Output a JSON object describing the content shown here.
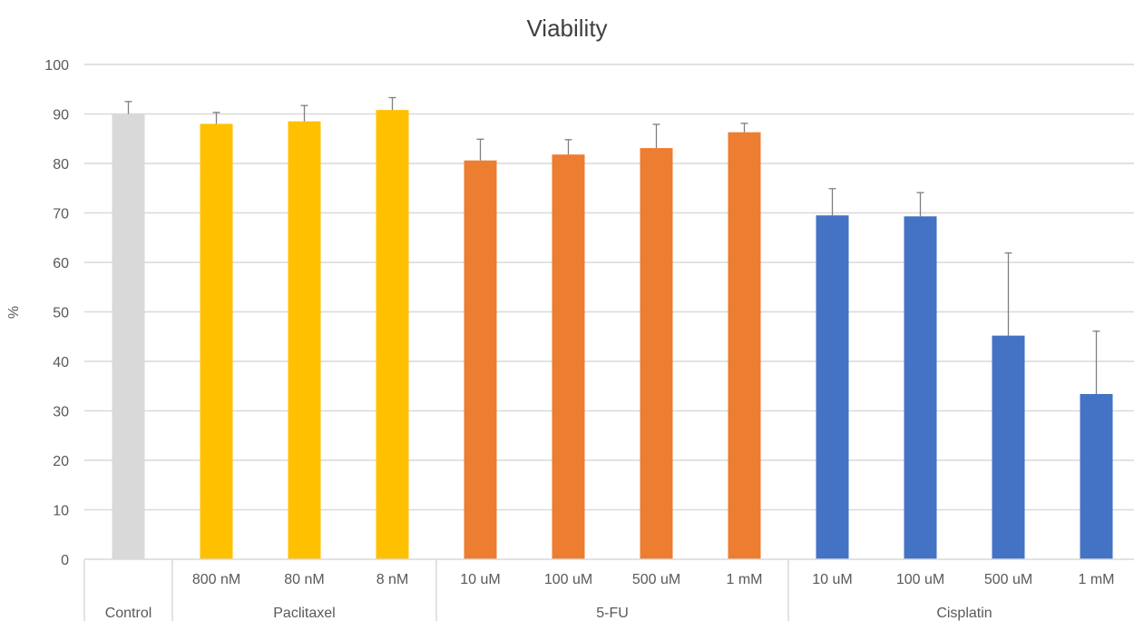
{
  "chart_data": {
    "type": "bar",
    "title": "Viability",
    "ylabel": "%",
    "xlabel": "",
    "ylim": [
      0,
      100
    ],
    "yticks": [
      0,
      10,
      20,
      30,
      40,
      50,
      60,
      70,
      80,
      90,
      100
    ],
    "grid": true,
    "groups": [
      {
        "label": "",
        "bars": [
          {
            "label": "Control",
            "value": 90,
            "error": 2.5,
            "color": "#d9d9d9"
          }
        ]
      },
      {
        "label": "Paclitaxel",
        "bars": [
          {
            "label": "800 nM",
            "value": 88,
            "error": 2.3,
            "color": "#ffc000"
          },
          {
            "label": "80 nM",
            "value": 88.5,
            "error": 3.2,
            "color": "#ffc000"
          },
          {
            "label": "8 nM",
            "value": 90.8,
            "error": 2.5,
            "color": "#ffc000"
          }
        ]
      },
      {
        "label": "5-FU",
        "bars": [
          {
            "label": "10 uM",
            "value": 80.6,
            "error": 4.3,
            "color": "#ed7d31"
          },
          {
            "label": "100 uM",
            "value": 81.8,
            "error": 3.0,
            "color": "#ed7d31"
          },
          {
            "label": "500 uM",
            "value": 83.1,
            "error": 4.8,
            "color": "#ed7d31"
          },
          {
            "label": "1 mM",
            "value": 86.3,
            "error": 1.8,
            "color": "#ed7d31"
          }
        ]
      },
      {
        "label": "Cisplatin",
        "bars": [
          {
            "label": "10 uM",
            "value": 69.5,
            "error": 5.4,
            "color": "#4472c4"
          },
          {
            "label": "100 uM",
            "value": 69.3,
            "error": 4.8,
            "color": "#4472c4"
          },
          {
            "label": "500 uM",
            "value": 45.2,
            "error": 16.7,
            "color": "#4472c4"
          },
          {
            "label": "1 mM",
            "value": 33.4,
            "error": 12.7,
            "color": "#4472c4"
          }
        ]
      }
    ],
    "colors": {
      "grid": "#d9d9d9",
      "axis": "#d9d9d9",
      "error_bar": "#7f7f7f",
      "text": "#595959"
    }
  }
}
